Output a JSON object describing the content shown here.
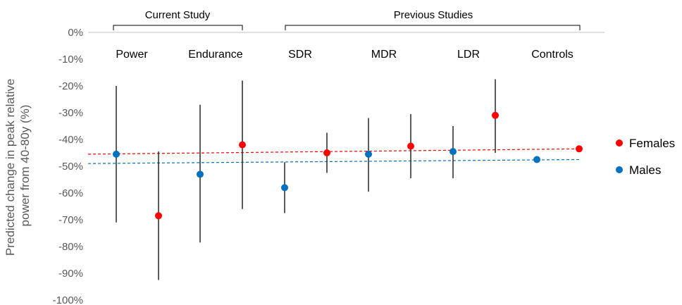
{
  "chart_data": {
    "type": "scatter",
    "ylabel_line1": "Predicted change in peak relative",
    "ylabel_line2": "power from 40-80y (%)",
    "ylim": [
      -100,
      0
    ],
    "yticks": [
      "0%",
      "-10%",
      "-20%",
      "-30%",
      "-40%",
      "-50%",
      "-60%",
      "-70%",
      "-80%",
      "-90%",
      "-100%"
    ],
    "groups": [
      "Current Study",
      "Previous Studies"
    ],
    "categories": [
      "Power",
      "Endurance",
      "SDR",
      "MDR",
      "LDR",
      "Controls"
    ],
    "legend": [
      {
        "name": "Females",
        "color": "#ff0000"
      },
      {
        "name": "Males",
        "color": "#0070c0"
      }
    ],
    "points": [
      {
        "category": "Power",
        "sex": "Males",
        "value": -45.5,
        "low": -71,
        "high": -20
      },
      {
        "category": "Power",
        "sex": "Females",
        "value": -68.5,
        "low": -92.5,
        "high": -44.5
      },
      {
        "category": "Endurance",
        "sex": "Males",
        "value": -53,
        "low": -78.5,
        "high": -27
      },
      {
        "category": "Endurance",
        "sex": "Females",
        "value": -42,
        "low": -66,
        "high": -18
      },
      {
        "category": "SDR",
        "sex": "Males",
        "value": -58,
        "low": -67.5,
        "high": -48.5
      },
      {
        "category": "SDR",
        "sex": "Females",
        "value": -45,
        "low": -52.5,
        "high": -37.5
      },
      {
        "category": "MDR",
        "sex": "Males",
        "value": -45.5,
        "low": -59.5,
        "high": -32
      },
      {
        "category": "MDR",
        "sex": "Females",
        "value": -42.5,
        "low": -54.5,
        "high": -30.5
      },
      {
        "category": "LDR",
        "sex": "Males",
        "value": -44.5,
        "low": -54.5,
        "high": -35
      },
      {
        "category": "LDR",
        "sex": "Females",
        "value": -31,
        "low": -45,
        "high": -17.5
      },
      {
        "category": "Controls",
        "sex": "Males",
        "value": -47.5,
        "low": null,
        "high": null
      },
      {
        "category": "Controls",
        "sex": "Females",
        "value": -43.5,
        "low": null,
        "high": null
      }
    ],
    "trendlines": [
      {
        "sex": "Females",
        "color": "#ff0000",
        "start": -45.5,
        "end": -43.5
      },
      {
        "sex": "Males",
        "color": "#0070c0",
        "start": -49,
        "end": -47.5
      }
    ]
  }
}
